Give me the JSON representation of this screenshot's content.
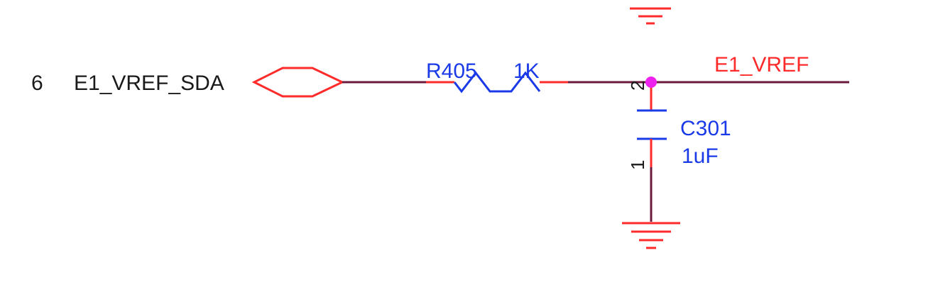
{
  "colors": {
    "wire": "#6b1a3c",
    "pin": "#ff2a2a",
    "part": "#1a3ae8",
    "text": "#1a1a1a",
    "junction": "#ee22ee",
    "background": "#ffffff"
  },
  "port": {
    "pin_number": "6",
    "net_name": "E1_VREF_SDA"
  },
  "resistor": {
    "designator": "R405",
    "value": "1K"
  },
  "capacitor": {
    "designator": "C301",
    "value": "1uF",
    "pin_top": "2",
    "pin_bottom": "1"
  },
  "net_label": "E1_VREF",
  "icons": [
    "ground-symbol-icon",
    "resistor-icon",
    "capacitor-icon",
    "port-icon",
    "junction-dot-icon"
  ]
}
